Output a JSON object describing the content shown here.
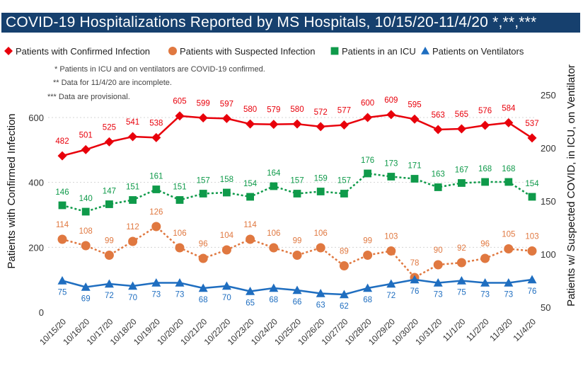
{
  "title": "COVID-19 Hospitalizations Reported by MS Hospitals, 10/15/20-11/4/20 *,**,***",
  "legend": [
    {
      "label": "Patients with Confirmed Infection",
      "color": "#e8000b",
      "marker": "diamond",
      "icon": "red-diamond-icon"
    },
    {
      "label": "Patients with Suspected Infection",
      "color": "#e07840",
      "marker": "circle",
      "icon": "orange-circle-icon"
    },
    {
      "label": "Patients in an ICU",
      "color": "#0f9a4a",
      "marker": "square",
      "icon": "green-square-icon"
    },
    {
      "label": "Patients on Ventilators",
      "color": "#1f6ec0",
      "marker": "triangle",
      "icon": "blue-triangle-icon"
    }
  ],
  "notes": [
    "* Patients in ICU and on ventilators are COVID-19 confirmed.",
    "** Data for 11/4/20 are incomplete.",
    "*** Data are provisional."
  ],
  "chart_data": {
    "type": "line",
    "categories": [
      "10/15/20",
      "10/16/20",
      "10/17/20",
      "10/18/20",
      "10/19/20",
      "10/20/20",
      "10/21/20",
      "10/22/20",
      "10/23/20",
      "10/24/20",
      "10/25/20",
      "10/26/20",
      "10/27/20",
      "10/28/20",
      "10/29/20",
      "10/30/20",
      "10/31/20",
      "11/1/20",
      "11/2/20",
      "11/3/20",
      "11/4/20"
    ],
    "left_axis": {
      "label": "Patients with Confirmed Infection",
      "range": [
        0,
        650
      ],
      "ticks": [
        0,
        200,
        400,
        600
      ]
    },
    "right_axis": {
      "label": "Patients w/ Suspected COVID, in ICU, on Ventilator",
      "range": [
        50,
        260
      ],
      "ticks": [
        50,
        100,
        150,
        200,
        250
      ]
    },
    "grid": true,
    "legend_position": "top",
    "series": [
      {
        "name": "Patients with Confirmed Infection",
        "axis": "left",
        "color": "#e8000b",
        "marker": "diamond",
        "dashed": false,
        "values": [
          482,
          501,
          525,
          541,
          538,
          605,
          599,
          597,
          580,
          579,
          580,
          572,
          577,
          600,
          609,
          595,
          563,
          565,
          576,
          584,
          537
        ]
      },
      {
        "name": "Patients with Suspected Infection",
        "axis": "right",
        "color": "#e07840",
        "marker": "circle",
        "dashed": true,
        "values": [
          114,
          108,
          99,
          112,
          126,
          106,
          96,
          104,
          114,
          106,
          99,
          106,
          89,
          99,
          103,
          78,
          90,
          92,
          96,
          105,
          103
        ]
      },
      {
        "name": "Patients in an ICU",
        "axis": "right",
        "color": "#0f9a4a",
        "marker": "square",
        "dashed": true,
        "values": [
          146,
          140,
          147,
          151,
          161,
          151,
          157,
          158,
          154,
          164,
          157,
          159,
          157,
          176,
          173,
          171,
          163,
          167,
          168,
          168,
          154
        ]
      },
      {
        "name": "Patients on Ventilators",
        "axis": "right",
        "color": "#1f6ec0",
        "marker": "triangle",
        "dashed": false,
        "values": [
          75,
          69,
          72,
          70,
          73,
          73,
          68,
          70,
          65,
          68,
          66,
          63,
          62,
          68,
          72,
          76,
          73,
          75,
          73,
          73,
          76
        ]
      }
    ]
  }
}
